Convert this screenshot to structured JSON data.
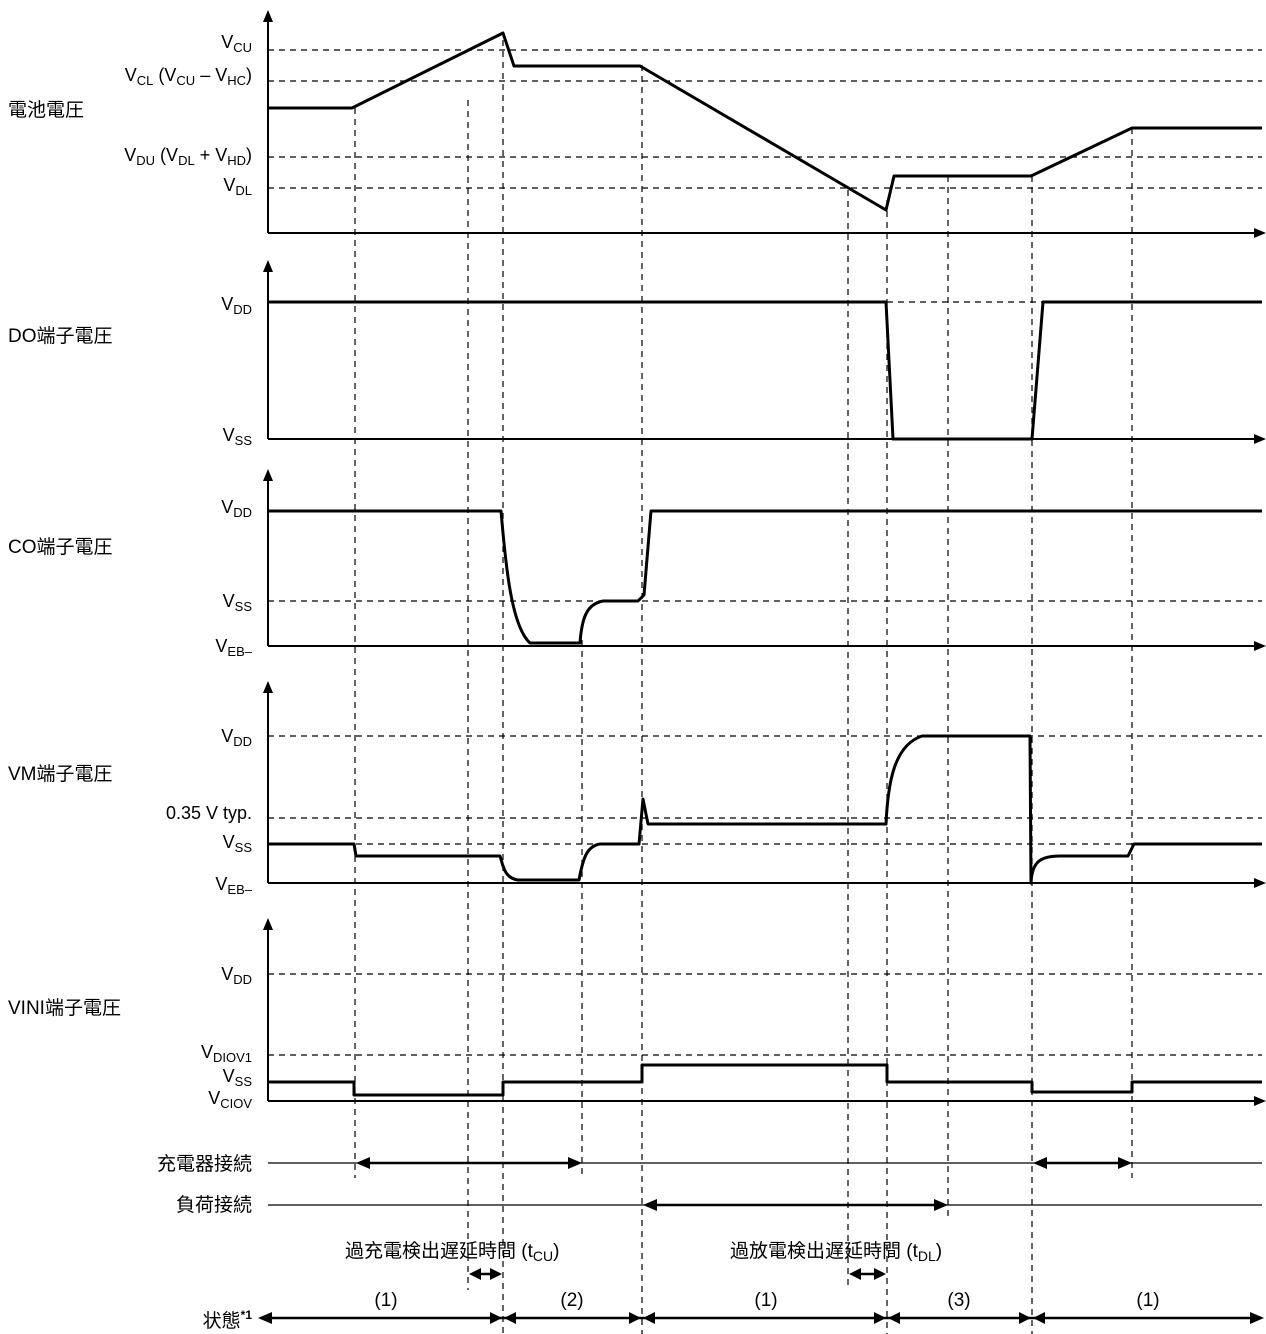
{
  "signals": {
    "battery": {
      "name": "電池電圧",
      "levels": {
        "vcu": [
          "V",
          "CU",
          ""
        ],
        "vcl": [
          "V",
          "CL",
          " (V",
          "CU",
          " – V",
          "HC",
          ")"
        ],
        "vdu": [
          "V",
          "DU",
          " (V",
          "DL",
          " + V",
          "HD",
          ")"
        ],
        "vdl": [
          "V",
          "DL",
          ""
        ]
      }
    },
    "do": {
      "name": "DO端子電圧",
      "levels": {
        "vdd": [
          "V",
          "DD",
          ""
        ],
        "vss": [
          "V",
          "SS",
          ""
        ]
      }
    },
    "co": {
      "name": "CO端子電圧",
      "levels": {
        "vdd": [
          "V",
          "DD",
          ""
        ],
        "vss": [
          "V",
          "SS",
          ""
        ],
        "veb": [
          "V",
          "EB–",
          ""
        ]
      }
    },
    "vm": {
      "name": "VM端子電圧",
      "levels": {
        "vdd": [
          "V",
          "DD",
          ""
        ],
        "typ": "0.35 V typ.",
        "vss": [
          "V",
          "SS",
          ""
        ],
        "veb": [
          "V",
          "EB–",
          ""
        ]
      }
    },
    "vini": {
      "name": "VINI端子電圧",
      "levels": {
        "vdd": [
          "V",
          "DD",
          ""
        ],
        "vdiov1": [
          "V",
          "DIOV1",
          ""
        ],
        "vss": [
          "V",
          "SS",
          ""
        ],
        "vciov": [
          "V",
          "CIOV",
          ""
        ]
      }
    }
  },
  "connections": {
    "charger": "充電器接続",
    "load": "負荷接続"
  },
  "delays": {
    "overcharge": [
      "過充電検出遅延時間 (t",
      "CU",
      ")"
    ],
    "overdischarge": [
      "過放電検出遅延時間 (t",
      "DL",
      ")"
    ]
  },
  "state": {
    "label": "状態",
    "footnote": "*1",
    "values": [
      "(1)",
      "(2)",
      "(1)",
      "(3)",
      "(1)"
    ]
  }
}
